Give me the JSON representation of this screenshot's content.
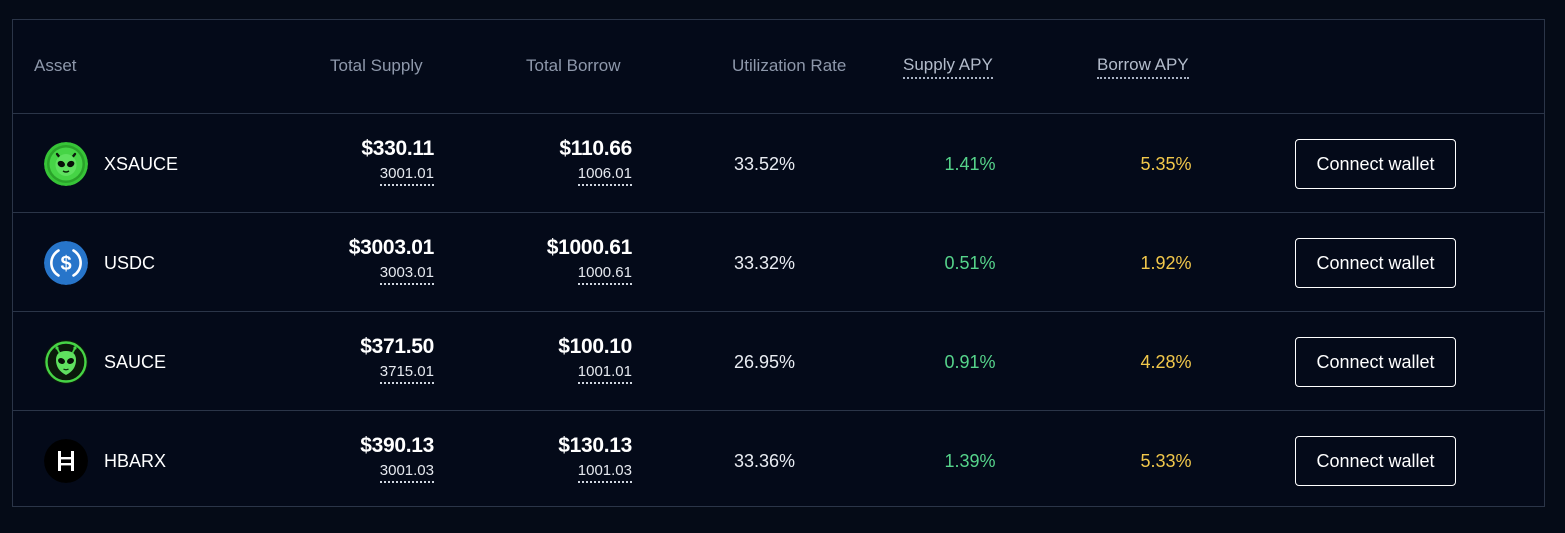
{
  "header": {
    "asset": "Asset",
    "total_supply": "Total Supply",
    "total_borrow": "Total Borrow",
    "utilization_rate": "Utilization Rate",
    "supply_apy": "Supply APY",
    "borrow_apy": "Borrow APY"
  },
  "rows": [
    {
      "name": "XSAUCE",
      "icon": "xsauce-alien-icon",
      "supply_usd": "$330.11",
      "supply_amount": "3001.01",
      "borrow_usd": "$110.66",
      "borrow_amount": "1006.01",
      "utilization": "33.52%",
      "supply_apy": "1.41%",
      "borrow_apy": "5.35%",
      "action": "Connect wallet"
    },
    {
      "name": "USDC",
      "icon": "usdc-dollar-icon",
      "supply_usd": "$3003.01",
      "supply_amount": "3003.01",
      "borrow_usd": "$1000.61",
      "borrow_amount": "1000.61",
      "utilization": "33.32%",
      "supply_apy": "0.51%",
      "borrow_apy": "1.92%",
      "action": "Connect wallet"
    },
    {
      "name": "SAUCE",
      "icon": "sauce-alien-icon",
      "supply_usd": "$371.50",
      "supply_amount": "3715.01",
      "borrow_usd": "$100.10",
      "borrow_amount": "1001.01",
      "utilization": "26.95%",
      "supply_apy": "0.91%",
      "borrow_apy": "4.28%",
      "action": "Connect wallet"
    },
    {
      "name": "HBARX",
      "icon": "hbar-h-icon",
      "supply_usd": "$390.13",
      "supply_amount": "3001.03",
      "borrow_usd": "$130.13",
      "borrow_amount": "1001.03",
      "utilization": "33.36%",
      "supply_apy": "1.39%",
      "borrow_apy": "5.33%",
      "action": "Connect wallet"
    }
  ],
  "colors": {
    "background": "#050b17",
    "border": "#2b3548",
    "supply_apy": "#56d48b",
    "borrow_apy": "#f2c84b",
    "header_text": "#8e98ab"
  }
}
